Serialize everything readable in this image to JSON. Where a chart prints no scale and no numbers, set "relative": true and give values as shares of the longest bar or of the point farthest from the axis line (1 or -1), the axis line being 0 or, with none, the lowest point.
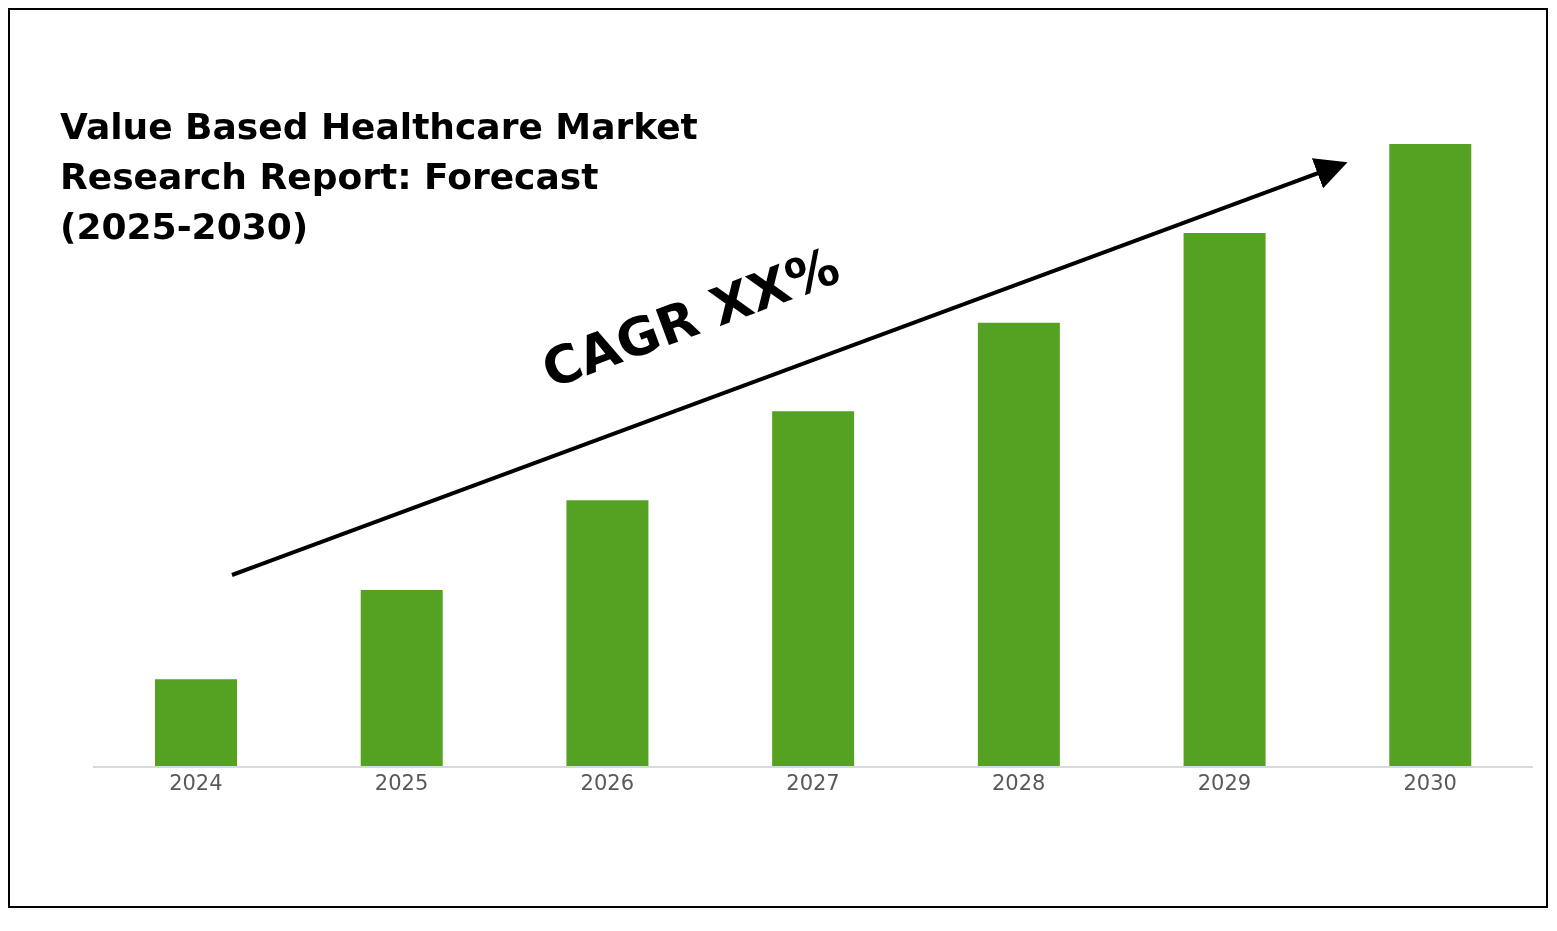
{
  "chart_data": {
    "type": "bar",
    "title": "Value Based Healthcare Market Research Report: Forecast (2025-2030)",
    "categories": [
      "2024",
      "2025",
      "2026",
      "2027",
      "2028",
      "2029",
      "2030"
    ],
    "values": [
      0.141,
      0.284,
      0.428,
      0.571,
      0.713,
      0.857,
      1
    ],
    "color": "#55a121",
    "relative": true,
    "annotations": [
      "CAGR XX%"
    ]
  }
}
